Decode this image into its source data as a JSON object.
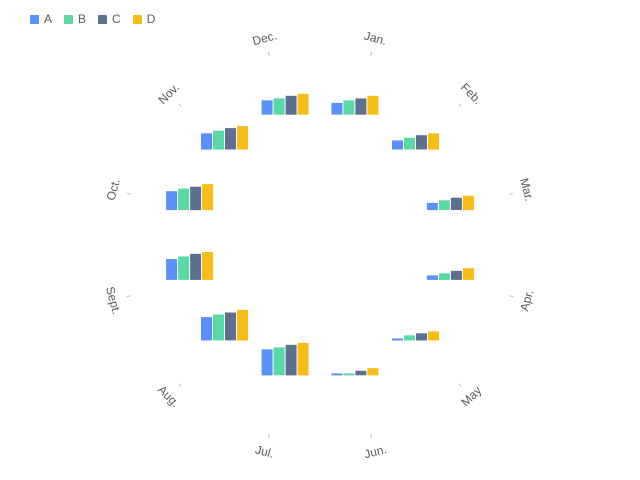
{
  "chart_data": {
    "type": "bar",
    "subtype": "polar-radial-grouped",
    "categories": [
      "Jan.",
      "Feb.",
      "Mar.",
      "Apr.",
      "May",
      "Jun.",
      "Jul.",
      "Aug.",
      "Sept.",
      "Oct.",
      "Nov.",
      "Dec."
    ],
    "series": [
      {
        "name": "A",
        "color": "#5B8FF9",
        "values": [
          18,
          14,
          11,
          7,
          3,
          3,
          40,
          36,
          32,
          29,
          25,
          22
        ]
      },
      {
        "name": "B",
        "color": "#5AD8A6",
        "values": [
          22,
          18,
          15,
          10,
          8,
          3,
          43,
          40,
          36,
          33,
          29,
          25
        ]
      },
      {
        "name": "C",
        "color": "#5D7092",
        "values": [
          25,
          22,
          19,
          14,
          11,
          7,
          47,
          43,
          40,
          36,
          33,
          29
        ]
      },
      {
        "name": "D",
        "color": "#F6BD16",
        "values": [
          29,
          25,
          22,
          18,
          14,
          11,
          50,
          47,
          43,
          40,
          36,
          32
        ]
      }
    ],
    "grid": false,
    "legend_position": "top-left"
  },
  "legend": {
    "items": [
      {
        "label": "A",
        "color": "#5B8FF9"
      },
      {
        "label": "B",
        "color": "#5AD8A6"
      },
      {
        "label": "C",
        "color": "#5D7092"
      },
      {
        "label": "D",
        "color": "#F6BD16"
      }
    ]
  }
}
